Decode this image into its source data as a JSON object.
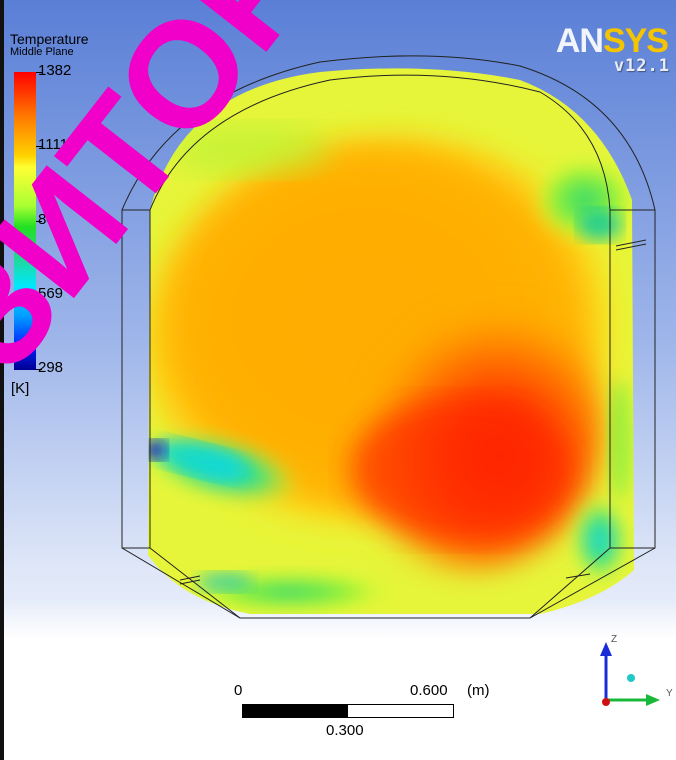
{
  "legend": {
    "title": "Temperature",
    "subtitle": "Middle Plane",
    "ticks": [
      "1382",
      "1111",
      "840",
      "569",
      "298"
    ],
    "unit": "[K]"
  },
  "brand": {
    "name": "ANSYS",
    "version": "v12.1"
  },
  "scale_bar": {
    "start": "0",
    "end": "0.600",
    "unit": "(m)",
    "mid": "0.300"
  },
  "axes": {
    "z": "Z",
    "y": "Y"
  },
  "watermark": {
    "text": "ЗИТОР"
  },
  "colors": {
    "hot": "#ff0000",
    "warm": "#ff9900",
    "mid": "#ffff33",
    "cool": "#00ffff",
    "cold": "#000090"
  }
}
